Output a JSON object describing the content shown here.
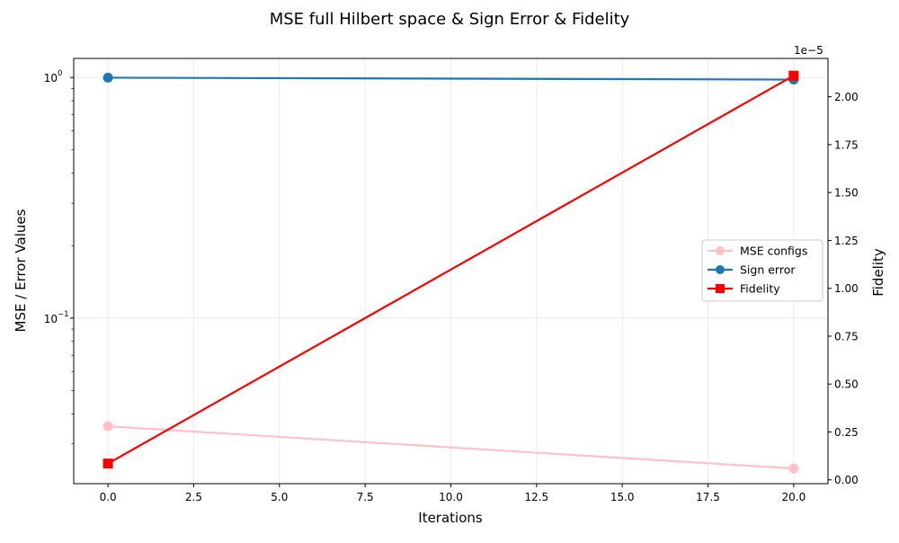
{
  "chart_data": {
    "type": "line",
    "title": "MSE full Hilbert space & Sign Error & Fidelity",
    "xlabel": "Iterations",
    "ylabel_left": "MSE / Error Values",
    "ylabel_right": "Fidelity",
    "right_axis_offset_text": "1e−5",
    "x_axis": {
      "range": [
        -1,
        21
      ],
      "ticks": [
        0,
        2.5,
        5,
        7.5,
        10,
        12.5,
        15,
        17.5,
        20
      ],
      "tick_labels": [
        "0.0",
        "2.5",
        "5.0",
        "7.5",
        "10.0",
        "12.5",
        "15.0",
        "17.5",
        "20.0"
      ]
    },
    "y_left": {
      "scale": "log",
      "range": [
        0.0205,
        1.2
      ],
      "major_ticks": [
        0.1,
        1
      ],
      "tick_labels": [
        "10",
        "10"
      ],
      "tick_exponents": [
        "−1",
        "0"
      ],
      "minor_ticks": [
        0.03,
        0.04,
        0.05,
        0.06,
        0.07,
        0.08,
        0.09,
        0.2,
        0.3,
        0.4,
        0.5,
        0.6,
        0.7,
        0.8,
        0.9
      ]
    },
    "y_right": {
      "scale": "linear",
      "range": [
        -0.02,
        2.2
      ],
      "unit_multiplier": "1e-5",
      "ticks": [
        0,
        0.25,
        0.5,
        0.75,
        1,
        1.25,
        1.5,
        1.75,
        2
      ],
      "tick_labels": [
        "0.00",
        "0.25",
        "0.50",
        "0.75",
        "1.00",
        "1.25",
        "1.50",
        "1.75",
        "2.00"
      ]
    },
    "grid": true,
    "legend_position": "center-right",
    "series": [
      {
        "name": "MSE configs",
        "axis": "left",
        "x": [
          0,
          20
        ],
        "y": [
          0.0355,
          0.0237
        ],
        "color": "#ffc0cb",
        "marker": "circle"
      },
      {
        "name": "Sign error",
        "axis": "left",
        "x": [
          0,
          20
        ],
        "y": [
          0.998,
          0.98
        ],
        "color": "#1f77b4",
        "marker": "circle"
      },
      {
        "name": "Fidelity",
        "axis": "right",
        "x": [
          0,
          20
        ],
        "y": [
          0.085,
          2.11
        ],
        "color": "#ff0000",
        "marker": "square"
      }
    ]
  }
}
